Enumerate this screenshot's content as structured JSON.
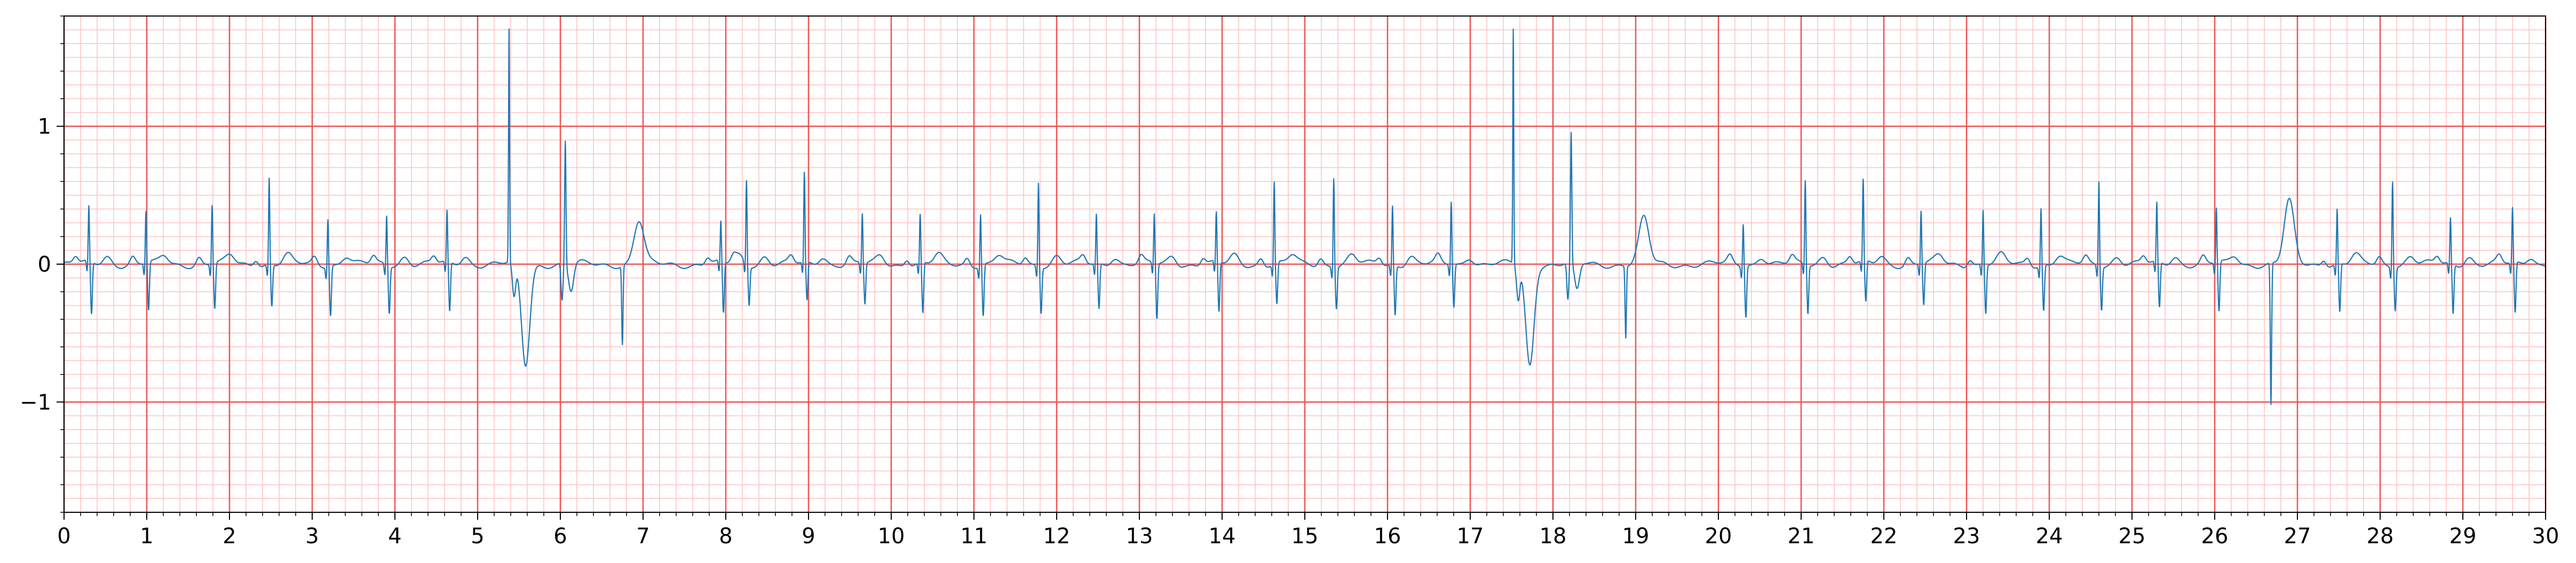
{
  "chart_data": {
    "type": "line",
    "title": "",
    "xlabel": "",
    "ylabel": "",
    "xlim": [
      0,
      30
    ],
    "ylim": [
      -1.8,
      1.8
    ],
    "x_ticks": [
      0,
      1,
      2,
      3,
      4,
      5,
      6,
      7,
      8,
      9,
      10,
      11,
      12,
      13,
      14,
      15,
      16,
      17,
      18,
      19,
      20,
      21,
      22,
      23,
      24,
      25,
      26,
      27,
      28,
      29,
      30
    ],
    "x_tick_labels": [
      "0",
      "1",
      "2",
      "3",
      "4",
      "5",
      "6",
      "7",
      "8",
      "9",
      "10",
      "11",
      "12",
      "13",
      "14",
      "15",
      "16",
      "17",
      "18",
      "19",
      "20",
      "21",
      "22",
      "23",
      "24",
      "25",
      "26",
      "27",
      "28",
      "29",
      "30"
    ],
    "y_ticks": [
      -1,
      0,
      1
    ],
    "y_tick_labels": [
      "−1",
      "0",
      "1"
    ],
    "grid": {
      "major": true,
      "minor": true,
      "major_x_step": 1,
      "major_y_step": 1,
      "minor_x_step": 0.2,
      "minor_y_step": 0.1,
      "major_color": "#f05252",
      "minor_color": "#ffc0c0"
    },
    "line_color": "#1f77b4",
    "baseline": 0,
    "normal_beats": [
      {
        "t": 0.3,
        "r": 0.4,
        "s": -0.38
      },
      {
        "t": 0.99,
        "r": 0.38,
        "s": -0.35
      },
      {
        "t": 1.79,
        "r": 0.43,
        "s": -0.33
      },
      {
        "t": 2.48,
        "r": 0.63,
        "s": -0.3
      },
      {
        "t": 3.19,
        "r": 0.35,
        "s": -0.36
      },
      {
        "t": 3.9,
        "r": 0.36,
        "s": -0.34
      },
      {
        "t": 4.63,
        "r": 0.37,
        "s": -0.36
      },
      {
        "t": 7.94,
        "r": 0.29,
        "s": -0.37
      },
      {
        "t": 8.25,
        "r": 0.61,
        "s": -0.28
      },
      {
        "t": 8.95,
        "r": 0.65,
        "s": -0.28
      },
      {
        "t": 9.65,
        "r": 0.36,
        "s": -0.3
      },
      {
        "t": 10.35,
        "r": 0.35,
        "s": -0.37
      },
      {
        "t": 11.08,
        "r": 0.38,
        "s": -0.37
      },
      {
        "t": 11.78,
        "r": 0.61,
        "s": -0.33
      },
      {
        "t": 12.48,
        "r": 0.36,
        "s": -0.33
      },
      {
        "t": 13.18,
        "r": 0.36,
        "s": -0.4
      },
      {
        "t": 13.93,
        "r": 0.36,
        "s": -0.36
      },
      {
        "t": 14.63,
        "r": 0.6,
        "s": -0.3
      },
      {
        "t": 15.35,
        "r": 0.65,
        "s": -0.3
      },
      {
        "t": 16.06,
        "r": 0.43,
        "s": -0.36
      },
      {
        "t": 16.77,
        "r": 0.46,
        "s": -0.31
      },
      {
        "t": 20.3,
        "r": 0.31,
        "s": -0.37
      },
      {
        "t": 21.05,
        "r": 0.61,
        "s": -0.35
      },
      {
        "t": 21.75,
        "r": 0.59,
        "s": -0.3
      },
      {
        "t": 22.45,
        "r": 0.39,
        "s": -0.3
      },
      {
        "t": 23.2,
        "r": 0.4,
        "s": -0.35
      },
      {
        "t": 23.9,
        "r": 0.42,
        "s": -0.33
      },
      {
        "t": 24.6,
        "r": 0.62,
        "s": -0.31
      },
      {
        "t": 25.3,
        "r": 0.43,
        "s": -0.33
      },
      {
        "t": 26.02,
        "r": 0.4,
        "s": -0.36
      },
      {
        "t": 27.48,
        "r": 0.4,
        "s": -0.35
      },
      {
        "t": 28.15,
        "r": 0.63,
        "s": -0.31
      },
      {
        "t": 28.85,
        "r": 0.33,
        "s": -0.36
      },
      {
        "t": 29.6,
        "r": 0.4,
        "s": -0.37
      }
    ],
    "ectopic_beats": [
      {
        "t": 5.38,
        "peak": 1.69,
        "trough": -0.73
      },
      {
        "t": 17.52,
        "peak": 1.7,
        "trough": -0.73
      }
    ],
    "wide_complexes": [
      {
        "t": 6.06,
        "peak": 0.9,
        "trough": -0.27
      },
      {
        "t": 18.22,
        "peak": 0.94,
        "trough": -0.27
      }
    ],
    "notable_points": [
      {
        "x": 6.75,
        "y": -0.57
      },
      {
        "x": 18.88,
        "y": -0.52
      },
      {
        "x": 26.68,
        "y": -1.03
      }
    ],
    "t_waves": [
      {
        "t": 6.95,
        "y": 0.31
      },
      {
        "t": 19.1,
        "y": 0.33
      },
      {
        "t": 26.9,
        "y": 0.45
      }
    ]
  }
}
